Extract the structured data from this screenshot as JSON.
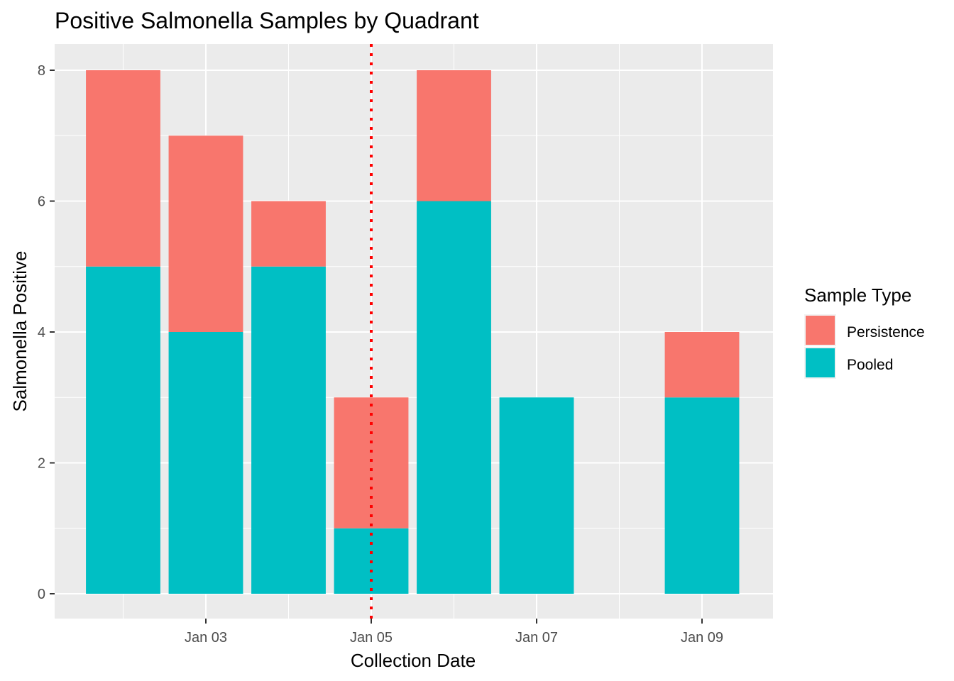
{
  "chart_data": {
    "type": "bar",
    "stacked": true,
    "title": "Positive Salmonella Samples by Quadrant",
    "xlabel": "Collection Date",
    "ylabel": "Salmonella Positive",
    "x_tick_labels": [
      "Jan 03",
      "Jan 05",
      "Jan 07",
      "Jan 09"
    ],
    "y_ticks": [
      0,
      2,
      4,
      6,
      8
    ],
    "ylim": [
      0,
      8.4
    ],
    "grid": true,
    "legend": {
      "title": "Sample Type",
      "placement": "right"
    },
    "reference_line": {
      "x": "2021-01-05",
      "style": "dotted",
      "color": "#ff0000"
    },
    "x": [
      "2021-01-02",
      "2021-01-03",
      "2021-01-04",
      "2021-01-05",
      "2021-01-06",
      "2021-01-07",
      "2021-01-09"
    ],
    "series": [
      {
        "name": "Pooled",
        "color": "#00bfc4",
        "values": [
          5,
          4,
          5,
          1,
          6,
          3,
          3
        ]
      },
      {
        "name": "Persistence",
        "color": "#f8766d",
        "values": [
          3,
          3,
          1,
          2,
          2,
          0,
          1
        ]
      }
    ]
  }
}
